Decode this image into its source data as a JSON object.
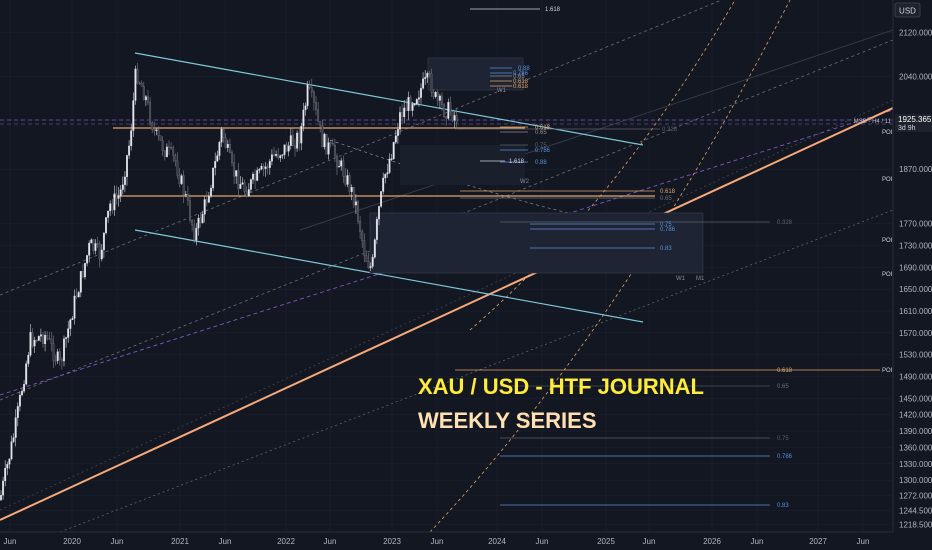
{
  "chart_data": {
    "type": "candlestick",
    "title": "XAU / USD - HTF JOURNAL",
    "subtitle": "WEEKLY SERIES",
    "currency": "USD",
    "price_tag": {
      "value": "1925.365",
      "countdown": "3d 9h",
      "tag_label": "MSB - H4 / 11"
    },
    "ylim": [
      1205,
      2180
    ],
    "y_ticks": [
      2120.0,
      2040.0,
      1960.0,
      1870.0,
      1770.0,
      1730.0,
      1690.0,
      1650.0,
      1610.0,
      1570.0,
      1530.0,
      1490.0,
      1450.0,
      1420.0,
      1390.0,
      1360.0,
      1330.0,
      1300.0,
      1272.0,
      1244.5,
      1218.5
    ],
    "x_ticks": [
      "Jun",
      "2020",
      "Jun",
      "2021",
      "Jun",
      "2022",
      "Jun",
      "2023",
      "Jun",
      "2024",
      "Jun",
      "2025",
      "Jun",
      "2026",
      "Jun",
      "2027",
      "Jun"
    ],
    "poi_labels": [
      "POI",
      "POI",
      "POI",
      "POI",
      "POI"
    ],
    "fib_labels": [
      "1.618",
      "0.618",
      "0.328",
      "0.618",
      "0.65",
      "0.328",
      "0.75",
      "0.786",
      "0.83",
      "0.618",
      "0.65",
      "0.75",
      "0.786",
      "0.88",
      "1.618",
      "0.618",
      "0.65",
      "0.786",
      "0.88",
      "0.75",
      "0.786",
      "0.83"
    ],
    "wave_labels": [
      "W1",
      "W2",
      "W1",
      "M1"
    ],
    "colors": {
      "background": "#131722",
      "up": "#d1d4dc",
      "down": "#7c7f88",
      "channel": "#7ec8d8",
      "trend": "#f7a97a",
      "fib_orange": "#e0a46a",
      "fib_blue": "#5b8fd8",
      "title": "#ffeb3b",
      "subtitle": "#ffe0b2"
    }
  }
}
